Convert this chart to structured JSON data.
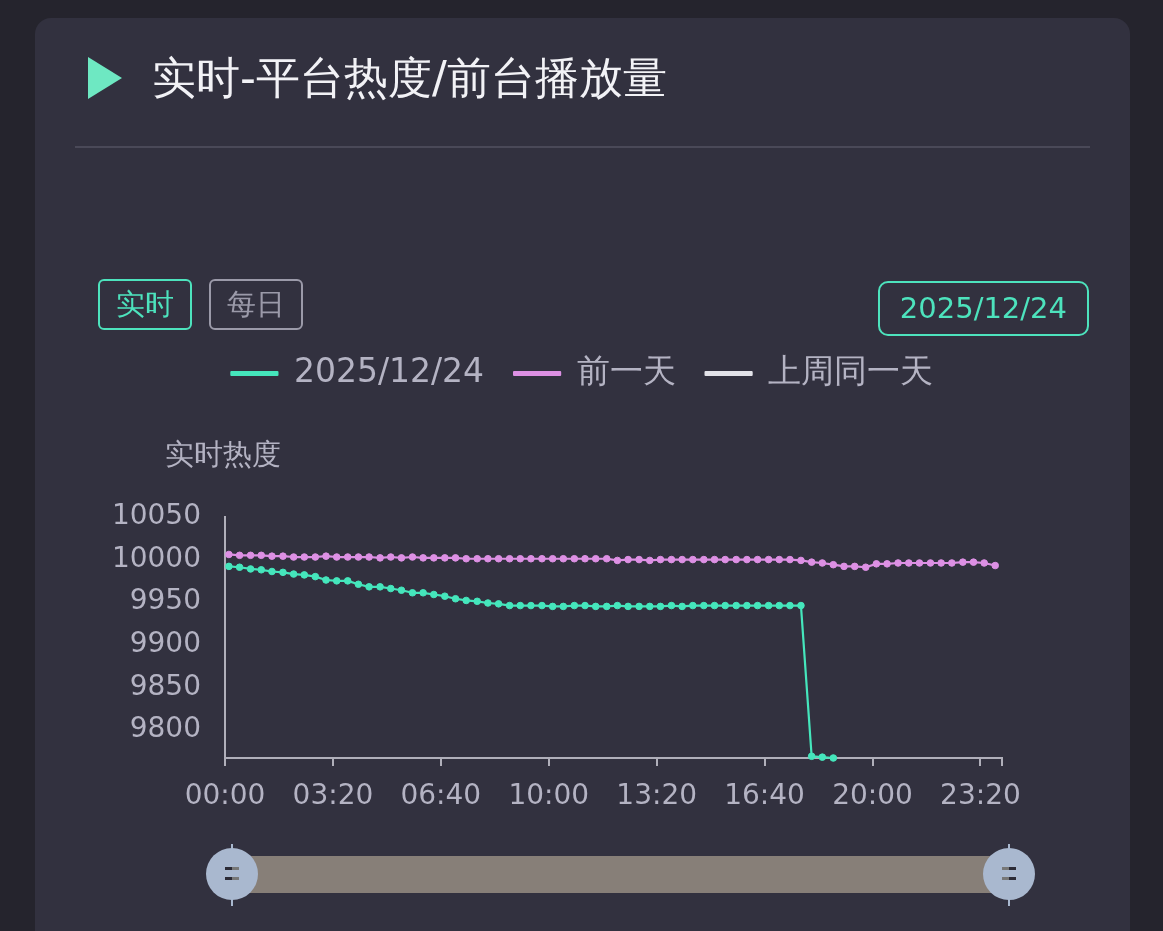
{
  "chart_data": {
    "type": "line",
    "title": "实时-平台热度/前台播放量",
    "ylabel": "实时热度",
    "annotations": [
      "实时",
      "每日",
      "2025/12/24"
    ],
    "x": [
      0.12,
      0.45,
      0.79,
      1.12,
      1.45,
      1.79,
      2.12,
      2.45,
      2.79,
      3.12,
      3.45,
      3.79,
      4.12,
      4.45,
      4.79,
      5.12,
      5.45,
      5.79,
      6.12,
      6.45,
      6.79,
      7.12,
      7.45,
      7.79,
      8.12,
      8.45,
      8.79,
      9.12,
      9.45,
      9.79,
      10.12,
      10.45,
      10.79,
      11.12,
      11.45,
      11.79,
      12.12,
      12.45,
      12.79,
      13.12,
      13.45,
      13.79,
      14.12,
      14.45,
      14.79,
      15.12,
      15.45,
      15.79,
      16.12,
      16.45,
      16.79,
      17.12,
      17.45,
      17.79,
      18.12,
      18.45,
      18.79,
      19.12,
      19.45,
      19.79,
      20.12,
      20.45,
      20.79,
      21.12,
      21.45,
      21.79,
      22.12,
      22.45,
      22.79,
      23.12,
      23.45,
      23.79
    ],
    "series": [
      {
        "name": "2025/12/24",
        "color": "#45e6bc",
        "values": [
          9992,
          9991,
          9989,
          9988,
          9986,
          9985,
          9983,
          9982,
          9980,
          9976,
          9975,
          9975,
          9971,
          9968,
          9968,
          9966,
          9964,
          9961,
          9961,
          9959,
          9957,
          9954,
          9952,
          9951,
          9949,
          9948,
          9946,
          9946,
          9946,
          9946,
          9945,
          9945,
          9946,
          9946,
          9945,
          9945,
          9946,
          9945,
          9945,
          9945,
          9945,
          9946,
          9945,
          9946,
          9946,
          9946,
          9946,
          9946,
          9946,
          9946,
          9946,
          9946,
          9946,
          9946,
          9769,
          9768,
          9767,
          null,
          null,
          null,
          null,
          null,
          null,
          null,
          null,
          null,
          null,
          null,
          null,
          null,
          null,
          null
        ]
      },
      {
        "name": "前一天",
        "color": "#dd90e4",
        "values": [
          10006,
          10005,
          10005,
          10005,
          10004,
          10004,
          10003,
          10003,
          10003,
          10004,
          10003,
          10003,
          10003,
          10003,
          10002,
          10003,
          10002,
          10003,
          10002,
          10002,
          10002,
          10002,
          10001,
          10001,
          10001,
          10001,
          10001,
          10001,
          10001,
          10001,
          10001,
          10001,
          10001,
          10001,
          10001,
          10001,
          9999,
          10000,
          10000,
          9999,
          10000,
          10000,
          10000,
          10000,
          10000,
          10000,
          10000,
          10000,
          10000,
          10000,
          10000,
          10000,
          10000,
          9999,
          9997,
          9996,
          9994,
          9992,
          9992,
          9991,
          9995,
          9995,
          9996,
          9996,
          9996,
          9996,
          9996,
          9996,
          9997,
          9997,
          9996,
          9993
        ]
      },
      {
        "name": "上周同一天",
        "color": "#e2e2e8",
        "values": [
          null,
          null,
          null,
          null,
          null,
          null,
          null,
          null,
          null,
          null,
          null,
          null,
          null,
          null,
          null,
          null,
          null,
          null,
          null,
          null,
          null,
          null,
          null,
          null,
          null,
          null,
          null,
          null,
          null,
          null,
          null,
          null,
          null,
          null,
          null,
          null,
          null,
          null,
          null,
          null,
          null,
          null,
          null,
          null,
          null,
          null,
          null,
          null,
          null,
          null,
          null,
          null,
          null,
          null,
          null,
          null,
          null,
          null,
          null,
          null,
          null,
          null,
          null,
          null,
          null,
          null,
          null,
          null,
          null,
          null,
          null,
          null
        ]
      }
    ],
    "xlim": [
      0,
      24
    ],
    "xticks": [
      {
        "value": 0,
        "label": "00:00"
      },
      {
        "value": 3.3333,
        "label": "03:20"
      },
      {
        "value": 6.6667,
        "label": "06:40"
      },
      {
        "value": 10,
        "label": "10:00"
      },
      {
        "value": 13.3333,
        "label": "13:20"
      },
      {
        "value": 16.6667,
        "label": "16:40"
      },
      {
        "value": 20,
        "label": "20:00"
      },
      {
        "value": 23.3333,
        "label": "23:20"
      },
      {
        "value": 24,
        "label": null
      }
    ],
    "ylim": [
      9767,
      10050
    ],
    "yticks": [
      9800,
      9850,
      9900,
      9950,
      10000,
      10050
    ],
    "legend": "top",
    "marker": "circle"
  }
}
